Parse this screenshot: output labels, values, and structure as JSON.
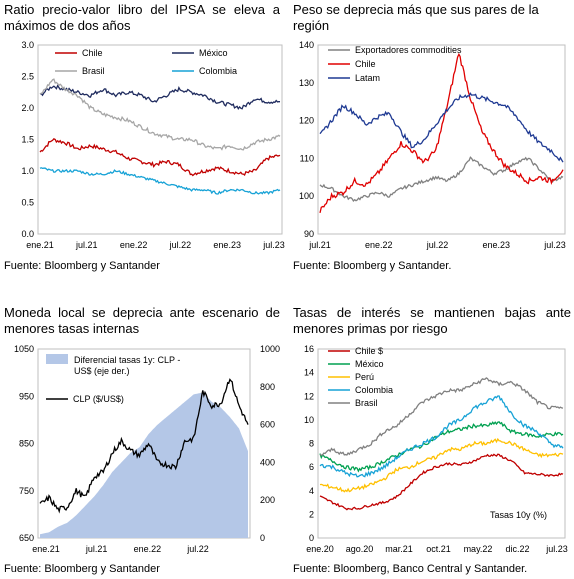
{
  "panels": [
    {
      "title": "Ratio precio-valor libro del IPSA se eleva a máximos de dos años",
      "source": "Fuente: Bloomberg y Santander",
      "chart_data": {
        "type": "line",
        "y_ticks": [
          "3.0",
          "2.5",
          "2.0",
          "1.5",
          "1.0",
          "0.5",
          "0.0"
        ],
        "ylim": [
          0,
          3
        ],
        "x_ticks": [
          "ene.21",
          "jul.21",
          "ene.22",
          "jul.22",
          "ene.23",
          "jul.23"
        ],
        "grid": false,
        "legend_placement": "top",
        "series": [
          {
            "name": "Chile",
            "color": "#c00000",
            "values": [
              1.3,
              1.5,
              1.45,
              1.35,
              1.4,
              1.35,
              1.3,
              1.2,
              1.15,
              1.1,
              1.15,
              1.1,
              0.95,
              1.0,
              1.05,
              1.0,
              0.95,
              1.0,
              1.2,
              1.25
            ]
          },
          {
            "name": "México",
            "color": "#1f2b5e",
            "values": [
              2.2,
              2.35,
              2.3,
              2.25,
              2.2,
              2.3,
              2.2,
              2.25,
              2.2,
              2.1,
              2.2,
              2.3,
              2.25,
              2.2,
              2.1,
              2.05,
              2.0,
              2.15,
              2.1,
              2.1
            ]
          },
          {
            "name": "Brasil",
            "color": "#a6a6a6",
            "values": [
              2.2,
              2.45,
              2.3,
              2.2,
              2.0,
              1.9,
              1.85,
              1.8,
              1.7,
              1.6,
              1.55,
              1.5,
              1.5,
              1.4,
              1.35,
              1.4,
              1.35,
              1.45,
              1.5,
              1.55
            ]
          },
          {
            "name": "Colombia",
            "color": "#17a2d6",
            "values": [
              1.05,
              1.0,
              1.0,
              1.0,
              0.95,
              0.95,
              1.0,
              0.95,
              0.9,
              0.85,
              0.8,
              0.75,
              0.7,
              0.7,
              0.65,
              0.7,
              0.7,
              0.65,
              0.65,
              0.7
            ]
          }
        ]
      }
    },
    {
      "title": "Peso se deprecia más que sus pares de la región",
      "source": "Fuente: Bloomberg y Santander.",
      "chart_data": {
        "type": "line",
        "y_ticks": [
          "140",
          "130",
          "120",
          "110",
          "100",
          "90"
        ],
        "ylim": [
          90,
          140
        ],
        "x_ticks": [
          "jul.21",
          "ene.22",
          "jul.22",
          "ene.23",
          "jul.23"
        ],
        "grid": false,
        "legend_placement": "top-left",
        "series": [
          {
            "name": "Exportadores commodities",
            "color": "#808080",
            "values": [
              103,
              102,
              100,
              99,
              100,
              101,
              100,
              102,
              103,
              104,
              105,
              104,
              106,
              110,
              108,
              106,
              107,
              109,
              110,
              107,
              104,
              105
            ]
          },
          {
            "name": "Chile",
            "color": "#e00000",
            "values": [
              96,
              100,
              101,
              104,
              103,
              106,
              110,
              114,
              112,
              109,
              112,
              124,
              138,
              126,
              117,
              112,
              108,
              106,
              104,
              105,
              104,
              107
            ]
          },
          {
            "name": "Latam",
            "color": "#1f3a93",
            "values": [
              116,
              120,
              124,
              122,
              119,
              121,
              122,
              117,
              113,
              115,
              119,
              123,
              126,
              127,
              126,
              125,
              124,
              121,
              117,
              114,
              112,
              109
            ]
          }
        ]
      }
    },
    {
      "title": "Moneda local se deprecia ante escenario de menores tasas internas",
      "source": "Fuente: Bloomberg y Santander",
      "chart_data": {
        "type": "area",
        "y_ticks": [
          "1050",
          "950",
          "850",
          "750",
          "650"
        ],
        "ylim": [
          650,
          1050
        ],
        "y2_ticks": [
          "1000",
          "800",
          "600",
          "400",
          "200",
          "0"
        ],
        "y2lim": [
          0,
          1000
        ],
        "x_ticks": [
          "ene.21",
          "jul.21",
          "ene.22",
          "jul.22"
        ],
        "grid": false,
        "legend_placement": "top-left",
        "series": [
          {
            "name": "Diferencial tasas 1y: CLP - US$ (eje der.)",
            "axis": "right",
            "color": "#b4c7e7",
            "values": [
              20,
              30,
              60,
              80,
              120,
              170,
              220,
              280,
              350,
              400,
              450,
              480,
              550,
              600,
              640,
              680,
              720,
              760,
              770,
              720,
              690,
              640,
              580,
              460
            ]
          },
          {
            "name": "CLP ($/US$)",
            "axis": "left",
            "color": "#000000",
            "values": [
              720,
              735,
              710,
              715,
              750,
              735,
              780,
              790,
              830,
              855,
              835,
              825,
              850,
              810,
              805,
              800,
              855,
              860,
              960,
              930,
              935,
              990,
              930,
              890
            ]
          }
        ]
      }
    },
    {
      "title": "Tasas de interés se mantienen bajas ante menores primas por riesgo",
      "source": "Fuente: Bloomberg, Banco Central y Santander.",
      "annotation": "Tasas 10y (%)",
      "chart_data": {
        "type": "line",
        "y_ticks": [
          "16",
          "14",
          "12",
          "10",
          "8",
          "6",
          "4",
          "2",
          "0"
        ],
        "ylim": [
          0,
          16
        ],
        "x_ticks": [
          "ene.20",
          "ago.20",
          "mar.21",
          "oct.21",
          "may.22",
          "dic.22",
          "jul.23"
        ],
        "grid": false,
        "legend_placement": "top-left",
        "series": [
          {
            "name": "Chile $",
            "color": "#c00000",
            "values": [
              3.5,
              3.0,
              2.5,
              2.5,
              2.8,
              3.0,
              3.5,
              4.5,
              5.5,
              6.0,
              6.3,
              6.2,
              6.5,
              7.0,
              7.0,
              6.5,
              5.5,
              5.4,
              5.3,
              5.4
            ]
          },
          {
            "name": "México",
            "color": "#00a050",
            "values": [
              7.0,
              6.5,
              6.0,
              5.8,
              6.0,
              6.5,
              7.0,
              7.5,
              7.8,
              8.5,
              9.0,
              9.2,
              9.5,
              9.5,
              9.8,
              9.0,
              8.8,
              8.6,
              8.8,
              8.8
            ]
          },
          {
            "name": "Perú",
            "color": "#ffc000",
            "values": [
              4.5,
              4.3,
              4.0,
              4.2,
              4.5,
              5.0,
              5.8,
              6.0,
              6.5,
              6.8,
              7.5,
              7.5,
              8.0,
              8.0,
              8.3,
              8.0,
              7.5,
              7.0,
              7.0,
              7.1
            ]
          },
          {
            "name": "Colombia",
            "color": "#17a2d6",
            "values": [
              6.2,
              6.0,
              5.5,
              5.2,
              5.5,
              6.0,
              6.8,
              7.5,
              8.0,
              8.5,
              9.5,
              10.0,
              11.0,
              11.5,
              12.0,
              10.5,
              9.5,
              9.0,
              8.0,
              7.6
            ]
          },
          {
            "name": "Brasil",
            "color": "#808080",
            "values": [
              7.0,
              7.5,
              7.0,
              7.5,
              8.0,
              9.0,
              9.5,
              10.5,
              11.5,
              12.0,
              12.5,
              12.5,
              13.0,
              13.5,
              13.0,
              13.2,
              12.5,
              11.5,
              11.0,
              11.0
            ]
          }
        ]
      }
    }
  ]
}
